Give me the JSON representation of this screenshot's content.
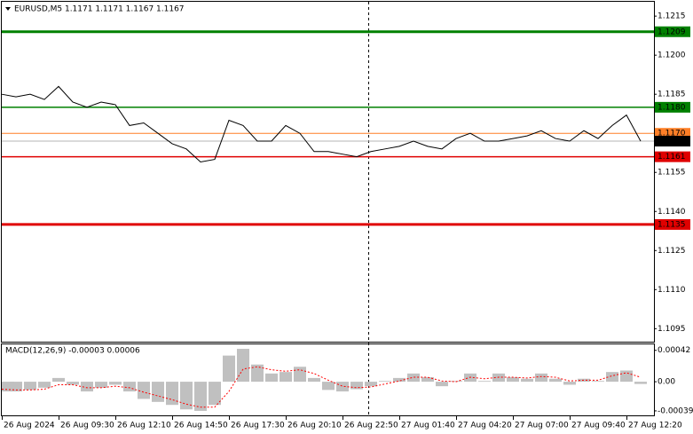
{
  "chart_data": [
    {
      "type": "line",
      "title": "EURUSD,M5  1.1171 1.1171 1.1167 1.1167",
      "categories": [
        "26 Aug 2024",
        null,
        null,
        null,
        "26 Aug 09:30",
        null,
        null,
        null,
        "26 Aug 12:10",
        null,
        null,
        null,
        "26 Aug 14:50",
        null,
        null,
        null,
        "26 Aug 17:30",
        null,
        null,
        null,
        "26 Aug 20:10",
        null,
        null,
        null,
        "26 Aug 22:50",
        null,
        null,
        null,
        "27 Aug 01:40",
        null,
        null,
        null,
        "27 Aug 04:20",
        null,
        null,
        null,
        "27 Aug 07:00",
        null,
        null,
        null,
        "27 Aug 09:40",
        null,
        null,
        null,
        "27 Aug 12:20",
        null
      ],
      "series": [
        {
          "color": "#000000",
          "values": [
            1.1185,
            1.1184,
            1.1185,
            1.1183,
            1.1188,
            1.1182,
            1.118,
            1.1182,
            1.1181,
            1.1173,
            1.1174,
            1.117,
            1.1166,
            1.1164,
            1.1159,
            1.116,
            1.1175,
            1.1173,
            1.1167,
            1.1167,
            1.1173,
            1.117,
            1.1163,
            1.1163,
            1.1162,
            1.1161,
            1.1163,
            1.1164,
            1.1165,
            1.1167,
            1.1165,
            1.1164,
            1.1168,
            1.117,
            1.1167,
            1.1167,
            1.1168,
            1.1169,
            1.1171,
            1.1168,
            1.1167,
            1.1171,
            1.1168,
            1.1173,
            1.1177,
            1.1167
          ]
        }
      ],
      "ylim": [
        1.109,
        1.12205
      ],
      "yticks": [
        1.1215,
        {
          "value": 1.12,
          "label": "1.1200"
        },
        1.1185,
        1.1155,
        {
          "value": 1.114,
          "label": "1.1140"
        },
        1.1125,
        {
          "value": 1.111,
          "label": "1.1110"
        },
        1.1095
      ],
      "levels": [
        {
          "value": 1.1209,
          "label": "1.1209",
          "color": "#008000",
          "width": 3
        },
        {
          "value": 1.118,
          "label": "1.1180",
          "color": "#008000",
          "width": 1.5
        },
        {
          "value": 1.117,
          "label": "1.1170",
          "color": "#ff7f27",
          "width": 1
        },
        {
          "value": 1.1167,
          "label": "1.1167",
          "color": "#b4b4b4",
          "width": 1
        },
        {
          "value": 1.1161,
          "label": "1.1161",
          "color": "#e00000",
          "width": 1.5
        },
        {
          "value": 1.1135,
          "label": "1.1135",
          "color": "#e00000",
          "width": 3
        }
      ]
    },
    {
      "type": "macd",
      "title": "MACD(12,26,9) -0.00003 0.00006",
      "series": [
        {
          "color": "#c0c0c0",
          "values": [
            -0.00013,
            -0.00013,
            -0.00011,
            -8e-05,
            5e-05,
            -4e-05,
            -0.00013,
            -8e-05,
            -4e-05,
            -0.00013,
            -0.00023,
            -0.00027,
            -0.00031,
            -0.00037,
            -0.00039,
            -0.00031,
            0.00035,
            0.00044,
            0.00023,
            0.00011,
            0.00013,
            0.0002,
            5e-05,
            -0.00011,
            -0.00013,
            -0.0001,
            -6e-05,
            1e-05,
            5e-05,
            0.00011,
            6e-05,
            -6e-05,
            1e-05,
            0.00011,
            1e-05,
            0.00011,
            6e-05,
            4e-05,
            0.00011,
            4e-05,
            -4e-05,
            4e-05,
            1e-05,
            0.00013,
            0.00015,
            -3e-05
          ]
        },
        {
          "color": "#ff0000",
          "values": [
            -0.0001,
            -0.00011,
            -0.00011,
            -0.0001,
            -4e-05,
            -4e-05,
            -8e-05,
            -8e-05,
            -6e-05,
            -8e-05,
            -0.00014,
            -0.00019,
            -0.00024,
            -0.0003,
            -0.00034,
            -0.00034,
            -0.00013,
            0.00017,
            0.0002,
            0.00016,
            0.00014,
            0.00016,
            0.00011,
            2e-05,
            -6e-05,
            -8e-05,
            -7e-05,
            -3e-05,
            1e-05,
            6e-05,
            6e-05,
            1e-05,
            0,
            6e-05,
            4e-05,
            6e-05,
            6e-05,
            5e-05,
            7e-05,
            6e-05,
            1e-05,
            2e-05,
            2e-05,
            8e-05,
            0.00012,
            6e-05
          ]
        }
      ],
      "ylim": [
        -0.00045,
        0.0005
      ],
      "yticks": [
        0.00042,
        {
          "value": 0,
          "label": "0.00"
        },
        -0.00039
      ]
    }
  ]
}
